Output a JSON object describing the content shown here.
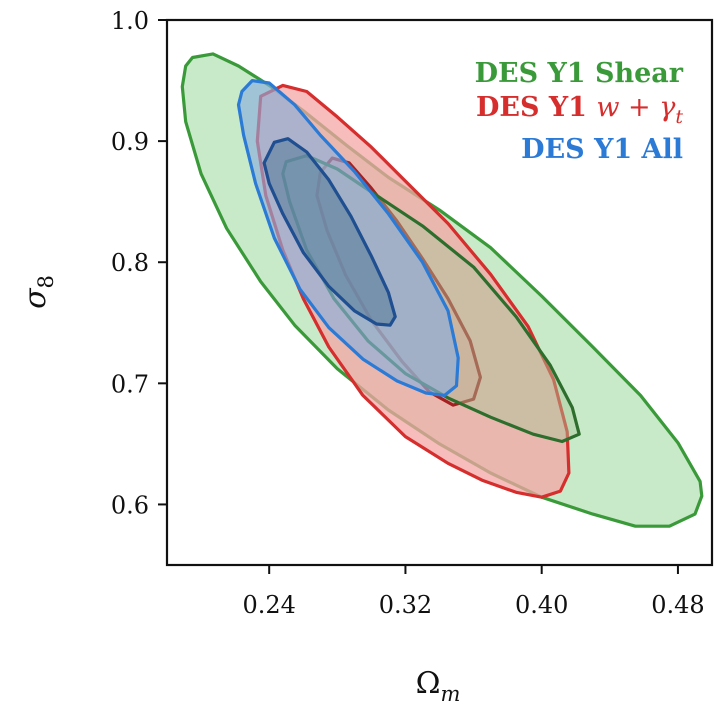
{
  "chart_data": {
    "type": "contour",
    "xlabel_base": "Ω",
    "xlabel_sub": "m",
    "ylabel_base": "σ",
    "ylabel_sub": "8",
    "xlim": [
      0.18,
      0.5
    ],
    "ylim": [
      0.55,
      1.0
    ],
    "xticks": [
      0.24,
      0.32,
      0.4,
      0.48
    ],
    "yticks": [
      0.6,
      0.7,
      0.8,
      0.9,
      1.0
    ],
    "xtick_labels": [
      "0.24",
      "0.32",
      "0.40",
      "0.48"
    ],
    "ytick_labels": [
      "0.6",
      "0.7",
      "0.8",
      "0.9",
      "1.0"
    ],
    "legend_position": "top-right",
    "legend": [
      {
        "text": "DES Y1 Shear",
        "color": "#3a9a3a"
      },
      {
        "text": "DES Y1 ",
        "math": "w + γ",
        "math_sub": "t",
        "color": "#d62d2d"
      },
      {
        "text": "DES Y1 All",
        "color": "#2b7bd6"
      }
    ],
    "series": [
      {
        "key": "shear",
        "level": "95%",
        "fill": "#bfe6bf",
        "fill_opacity": 0.85,
        "stroke": "#3a9a3a",
        "points": [
          [
            0.195,
            0.969
          ],
          [
            0.207,
            0.972
          ],
          [
            0.222,
            0.962
          ],
          [
            0.24,
            0.946
          ],
          [
            0.26,
            0.925
          ],
          [
            0.285,
            0.897
          ],
          [
            0.31,
            0.87
          ],
          [
            0.34,
            0.843
          ],
          [
            0.37,
            0.812
          ],
          [
            0.4,
            0.772
          ],
          [
            0.43,
            0.73
          ],
          [
            0.458,
            0.69
          ],
          [
            0.48,
            0.651
          ],
          [
            0.493,
            0.619
          ],
          [
            0.494,
            0.607
          ],
          [
            0.49,
            0.592
          ],
          [
            0.475,
            0.582
          ],
          [
            0.455,
            0.582
          ],
          [
            0.43,
            0.592
          ],
          [
            0.4,
            0.606
          ],
          [
            0.37,
            0.626
          ],
          [
            0.34,
            0.65
          ],
          [
            0.31,
            0.678
          ],
          [
            0.28,
            0.712
          ],
          [
            0.255,
            0.748
          ],
          [
            0.235,
            0.784
          ],
          [
            0.215,
            0.828
          ],
          [
            0.2,
            0.873
          ],
          [
            0.191,
            0.916
          ],
          [
            0.189,
            0.945
          ],
          [
            0.191,
            0.962
          ]
        ]
      },
      {
        "key": "wgt",
        "level": "95%",
        "fill": "#f4a5a5",
        "fill_opacity": 0.75,
        "stroke": "#d62d2d",
        "points": [
          [
            0.235,
            0.937
          ],
          [
            0.248,
            0.946
          ],
          [
            0.262,
            0.941
          ],
          [
            0.28,
            0.92
          ],
          [
            0.3,
            0.895
          ],
          [
            0.32,
            0.867
          ],
          [
            0.345,
            0.832
          ],
          [
            0.37,
            0.79
          ],
          [
            0.392,
            0.747
          ],
          [
            0.407,
            0.703
          ],
          [
            0.415,
            0.66
          ],
          [
            0.416,
            0.626
          ],
          [
            0.411,
            0.611
          ],
          [
            0.4,
            0.606
          ],
          [
            0.385,
            0.61
          ],
          [
            0.365,
            0.62
          ],
          [
            0.345,
            0.634
          ],
          [
            0.32,
            0.656
          ],
          [
            0.295,
            0.69
          ],
          [
            0.275,
            0.73
          ],
          [
            0.26,
            0.77
          ],
          [
            0.248,
            0.81
          ],
          [
            0.238,
            0.855
          ],
          [
            0.233,
            0.9
          ]
        ]
      },
      {
        "key": "wgt",
        "level": "68%",
        "fill": "#e89595",
        "fill_opacity": 0.45,
        "stroke": "#a52020",
        "points": [
          [
            0.27,
            0.874
          ],
          [
            0.277,
            0.886
          ],
          [
            0.287,
            0.882
          ],
          [
            0.3,
            0.861
          ],
          [
            0.315,
            0.834
          ],
          [
            0.33,
            0.803
          ],
          [
            0.345,
            0.77
          ],
          [
            0.358,
            0.735
          ],
          [
            0.364,
            0.705
          ],
          [
            0.36,
            0.687
          ],
          [
            0.348,
            0.682
          ],
          [
            0.334,
            0.693
          ],
          [
            0.318,
            0.718
          ],
          [
            0.3,
            0.752
          ],
          [
            0.285,
            0.789
          ],
          [
            0.274,
            0.826
          ],
          [
            0.268,
            0.855
          ]
        ]
      },
      {
        "key": "shear",
        "level": "68%",
        "fill": "#a8c89a",
        "fill_opacity": 0.45,
        "stroke": "#2d6e2d",
        "points": [
          [
            0.25,
            0.883
          ],
          [
            0.262,
            0.888
          ],
          [
            0.28,
            0.877
          ],
          [
            0.3,
            0.858
          ],
          [
            0.33,
            0.83
          ],
          [
            0.36,
            0.796
          ],
          [
            0.385,
            0.755
          ],
          [
            0.405,
            0.715
          ],
          [
            0.418,
            0.68
          ],
          [
            0.422,
            0.658
          ],
          [
            0.412,
            0.652
          ],
          [
            0.395,
            0.658
          ],
          [
            0.37,
            0.672
          ],
          [
            0.345,
            0.688
          ],
          [
            0.32,
            0.708
          ],
          [
            0.298,
            0.735
          ],
          [
            0.278,
            0.77
          ],
          [
            0.262,
            0.81
          ],
          [
            0.252,
            0.85
          ],
          [
            0.248,
            0.873
          ]
        ]
      },
      {
        "key": "all",
        "level": "95%",
        "fill": "#8aaedb",
        "fill_opacity": 0.65,
        "stroke": "#2b7bd6",
        "points": [
          [
            0.224,
            0.941
          ],
          [
            0.23,
            0.95
          ],
          [
            0.24,
            0.948
          ],
          [
            0.255,
            0.93
          ],
          [
            0.27,
            0.905
          ],
          [
            0.29,
            0.875
          ],
          [
            0.31,
            0.84
          ],
          [
            0.33,
            0.8
          ],
          [
            0.345,
            0.76
          ],
          [
            0.351,
            0.721
          ],
          [
            0.35,
            0.698
          ],
          [
            0.343,
            0.69
          ],
          [
            0.332,
            0.692
          ],
          [
            0.315,
            0.702
          ],
          [
            0.295,
            0.72
          ],
          [
            0.275,
            0.746
          ],
          [
            0.258,
            0.778
          ],
          [
            0.243,
            0.82
          ],
          [
            0.232,
            0.865
          ],
          [
            0.225,
            0.905
          ],
          [
            0.222,
            0.93
          ]
        ]
      },
      {
        "key": "all",
        "level": "68%",
        "fill": "#557a99",
        "fill_opacity": 0.55,
        "stroke": "#1f4f90",
        "points": [
          [
            0.237,
            0.882
          ],
          [
            0.243,
            0.899
          ],
          [
            0.251,
            0.902
          ],
          [
            0.262,
            0.891
          ],
          [
            0.275,
            0.868
          ],
          [
            0.288,
            0.838
          ],
          [
            0.3,
            0.805
          ],
          [
            0.31,
            0.775
          ],
          [
            0.314,
            0.755
          ],
          [
            0.311,
            0.748
          ],
          [
            0.303,
            0.749
          ],
          [
            0.29,
            0.76
          ],
          [
            0.275,
            0.78
          ],
          [
            0.26,
            0.808
          ],
          [
            0.248,
            0.84
          ],
          [
            0.24,
            0.865
          ]
        ]
      }
    ]
  }
}
